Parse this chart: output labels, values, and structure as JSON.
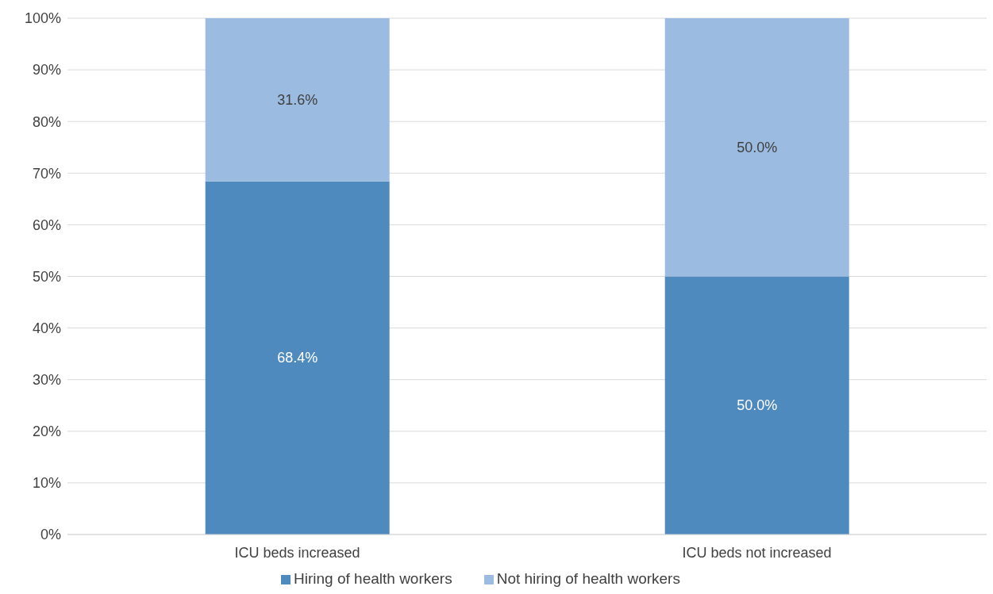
{
  "chart_data": {
    "type": "bar",
    "stacked": true,
    "categories": [
      "ICU beds increased",
      "ICU beds not increased"
    ],
    "series": [
      {
        "name": "Hiring of health workers",
        "color": "#4e8abe",
        "values": [
          68.4,
          50.0
        ],
        "value_labels": [
          "68.4%",
          "50.0%"
        ]
      },
      {
        "name": "Not hiring of health workers",
        "color": "#9bbbe0",
        "values": [
          31.6,
          50.0
        ],
        "value_labels": [
          "31.6%",
          "50.0%"
        ]
      }
    ],
    "ylim": [
      0,
      100
    ],
    "yticks": [
      {
        "value": 0,
        "label": "0%"
      },
      {
        "value": 10,
        "label": "10%"
      },
      {
        "value": 20,
        "label": "20%"
      },
      {
        "value": 30,
        "label": "30%"
      },
      {
        "value": 40,
        "label": "40%"
      },
      {
        "value": 50,
        "label": "50%"
      },
      {
        "value": 60,
        "label": "60%"
      },
      {
        "value": 70,
        "label": "70%"
      },
      {
        "value": 80,
        "label": "80%"
      },
      {
        "value": 90,
        "label": "90%"
      },
      {
        "value": 100,
        "label": "100%"
      }
    ],
    "grid": "y",
    "legend": "bottom"
  }
}
